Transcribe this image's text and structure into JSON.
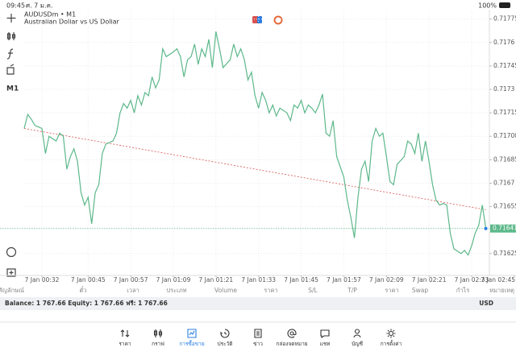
{
  "status_bar": {
    "time": "09:45",
    "date": "ศ. 7 ม.ค.",
    "battery": "100%"
  },
  "toolbar": {
    "timeframe": "M1"
  },
  "chart_data": {
    "type": "line",
    "symbol": "AUDUSDm • M1",
    "description": "Australian Dollar vs US Dollar",
    "color": "#5cb88a",
    "x": [
      27,
      28,
      29,
      30,
      31,
      32,
      33,
      34,
      36,
      37,
      38,
      39,
      40,
      41,
      42,
      43,
      44,
      45,
      46,
      47,
      48,
      49,
      50,
      52,
      53,
      54,
      55,
      56,
      57,
      58,
      59,
      60,
      61,
      62,
      63,
      64,
      65,
      66,
      67,
      69,
      70,
      71,
      72,
      73,
      74,
      75,
      76,
      77,
      78,
      79,
      80,
      81,
      82,
      83,
      85,
      86,
      87,
      88,
      89,
      90,
      91,
      92,
      93,
      94,
      95,
      96,
      97,
      98,
      99,
      101,
      102,
      103,
      104,
      105,
      106,
      107,
      108,
      109,
      110,
      111,
      112,
      113,
      114,
      115,
      117,
      118,
      119,
      120,
      121,
      122,
      123,
      124,
      125,
      126,
      127,
      128,
      129,
      130,
      131,
      132,
      134,
      135,
      136,
      137,
      138,
      139,
      140,
      141,
      142,
      143,
      144,
      145,
      146,
      147,
      148,
      150,
      151,
      152,
      153,
      154,
      155,
      156,
      157
    ],
    "values": [
      0.71705,
      0.71714,
      0.71711,
      0.71707,
      0.71706,
      0.71705,
      0.71689,
      0.717,
      0.71697,
      0.71702,
      0.717,
      0.71679,
      0.71687,
      0.71692,
      0.71684,
      0.71664,
      0.71656,
      0.71661,
      0.71644,
      0.71664,
      0.71669,
      0.71689,
      0.71695,
      0.71697,
      0.71702,
      0.71715,
      0.71721,
      0.71718,
      0.71723,
      0.71715,
      0.71726,
      0.7172,
      0.71728,
      0.71726,
      0.71738,
      0.71731,
      0.71736,
      0.71756,
      0.71751,
      0.71754,
      0.71756,
      0.71751,
      0.71738,
      0.71749,
      0.71751,
      0.71759,
      0.71746,
      0.71756,
      0.71751,
      0.71762,
      0.71744,
      0.71767,
      0.71756,
      0.71744,
      0.71749,
      0.71759,
      0.71751,
      0.71756,
      0.71749,
      0.71736,
      0.71741,
      0.71726,
      0.71718,
      0.71728,
      0.71723,
      0.71715,
      0.7172,
      0.71713,
      0.71718,
      0.71715,
      0.7171,
      0.7172,
      0.71718,
      0.71723,
      0.71715,
      0.7172,
      0.71718,
      0.71715,
      0.7172,
      0.71727,
      0.71702,
      0.717,
      0.7171,
      0.71687,
      0.71674,
      0.71659,
      0.71648,
      0.71635,
      0.71661,
      0.71679,
      0.71684,
      0.71671,
      0.71697,
      0.71705,
      0.717,
      0.71702,
      0.71687,
      0.71671,
      0.71669,
      0.71682,
      0.71687,
      0.71697,
      0.71695,
      0.71689,
      0.71702,
      0.71684,
      0.71697,
      0.71684,
      0.71669,
      0.71659,
      0.71656,
      0.71657,
      0.71656,
      0.71638,
      0.71628,
      0.71625,
      0.71627,
      0.71624,
      0.7163,
      0.71638,
      0.71643,
      0.71656,
      0.71641
    ],
    "xlim": [
      27,
      158
    ],
    "xticks": [
      {
        "value": 32,
        "label": "7 Jan 00:32"
      },
      {
        "value": 45,
        "label": "7 Jan 00:45"
      },
      {
        "value": 57,
        "label": "7 Jan 00:57"
      },
      {
        "value": 69,
        "label": "7 Jan 01:09"
      },
      {
        "value": 81,
        "label": "7 Jan 01:21"
      },
      {
        "value": 93,
        "label": "7 Jan 01:33"
      },
      {
        "value": 105,
        "label": "7 Jan 01:45"
      },
      {
        "value": 117,
        "label": "7 Jan 01:57"
      },
      {
        "value": 129,
        "label": "7 Jan 02:09"
      },
      {
        "value": 141,
        "label": "7 Jan 02:21"
      },
      {
        "value": 153,
        "label": "7 Jan 02:33"
      },
      {
        "value": 165,
        "label": "7 Jan 02:45"
      }
    ],
    "ylim": [
      0.71612,
      0.7178
    ],
    "yticks": [
      0.71625,
      0.71655,
      0.7167,
      0.71685,
      {
        "value": 0.717,
        "label": "0.71700"
      },
      0.71715,
      0.7173,
      0.71745,
      0.7176,
      0.71775
    ],
    "grid": true,
    "current_price": 0.71641,
    "trendline": {
      "x": [
        27,
        157
      ],
      "values": [
        0.71705,
        0.71653
      ],
      "color": "#d9534f"
    }
  },
  "table": {
    "columns": [
      "สัญลักษณ์",
      "ตั๋ว",
      "เวลา",
      "ประเภท",
      "Volume",
      "ราคา",
      "S/L",
      "T/P",
      "ราคา",
      "Swap",
      "กำไร",
      "หมายเหตุ"
    ]
  },
  "balance": {
    "text": "Balance: 1 767.66 Equity: 1 767.66 ฟรี: 1 767.66",
    "currency": "USD"
  },
  "nav": {
    "items": [
      "ราคา",
      "กราฟ",
      "การซื้อขาย",
      "ประวัติ",
      "ข่าว",
      "กล่องจดหมาย",
      "แชท",
      "บัญชี",
      "การตั้งค่า"
    ]
  }
}
